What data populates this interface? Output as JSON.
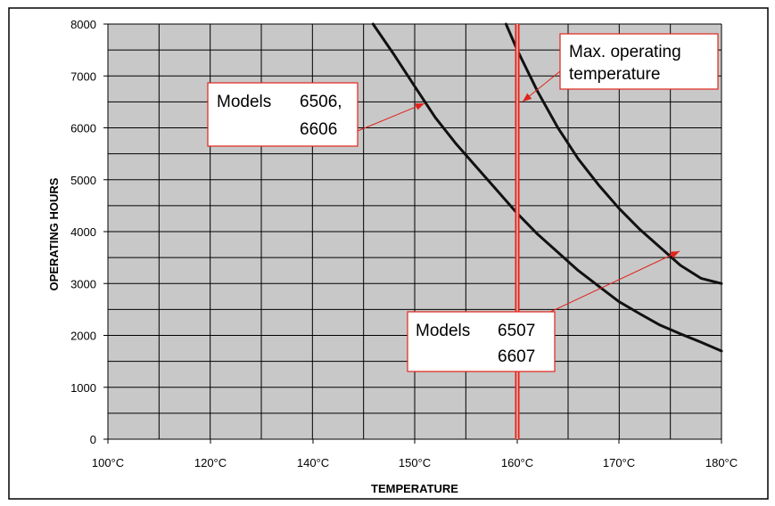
{
  "chart_data": {
    "type": "line",
    "xlabel": "TEMPERATURE",
    "ylabel": "OPERATING HOURS",
    "x_tick_labels": [
      "100°C",
      "120°C",
      "140°C",
      "150°C",
      "160°C",
      "170°C",
      "180°C"
    ],
    "y_tick_labels": [
      "0",
      "1000",
      "2000",
      "3000",
      "4000",
      "5000",
      "6000",
      "7000",
      "8000"
    ],
    "ylim": [
      0,
      8000
    ],
    "grid": true,
    "series": [
      {
        "label": [
          "Models",
          "6506,",
          "6606"
        ],
        "x": [
          145.9,
          148,
          150,
          152,
          154,
          156,
          158,
          160,
          162,
          164,
          166,
          168,
          170,
          172,
          174,
          176,
          178,
          180
        ],
        "y": [
          8000,
          7400,
          6800,
          6200,
          5700,
          5250,
          4800,
          4350,
          3950,
          3600,
          3250,
          2950,
          2650,
          2420,
          2200,
          2030,
          1870,
          1700
        ]
      },
      {
        "label": [
          "Models",
          "6507",
          "6607"
        ],
        "x": [
          158.9,
          160,
          162,
          164,
          166,
          168,
          170,
          172,
          174,
          176,
          178,
          180
        ],
        "y": [
          8000,
          7500,
          6700,
          6000,
          5400,
          4900,
          4450,
          4050,
          3700,
          3350,
          3100,
          3000
        ]
      }
    ],
    "reference_line": {
      "x": 160,
      "label": [
        "Max. operating",
        "temperature"
      ],
      "color": "#e0241b"
    },
    "colors": {
      "plot_background": "#c8c8c8",
      "grid": "#000000",
      "series_line": "#111111",
      "accent_red": "#e0241b"
    }
  }
}
